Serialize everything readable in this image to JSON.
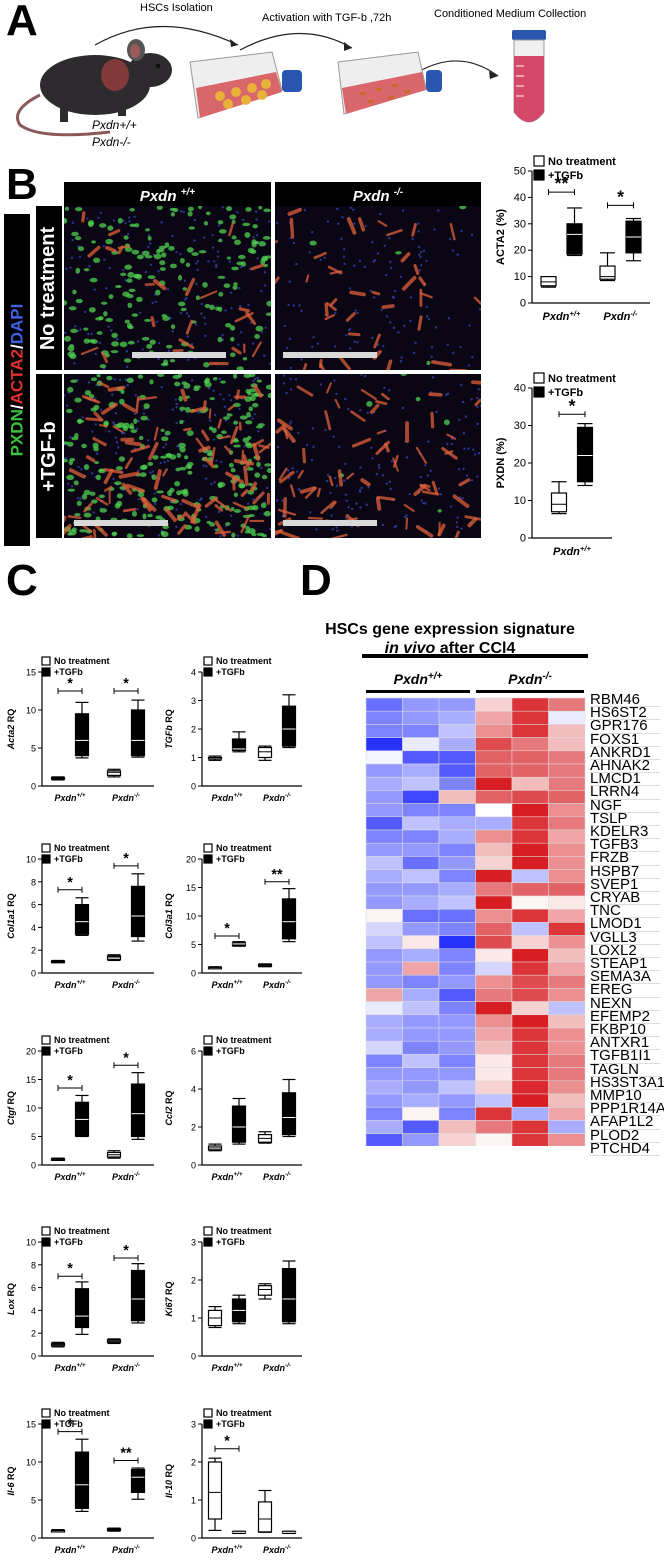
{
  "panels": {
    "a": "A",
    "b": "B",
    "c": "C",
    "d": "D"
  },
  "panel_a": {
    "steps": [
      "HSCs Isolation",
      "Activation with TGF-b ,72h",
      "Conditioned Medium Collection"
    ],
    "genotypes": [
      "Pxdn+/+",
      "Pxdn-/-"
    ]
  },
  "panel_b": {
    "col_headers": [
      {
        "base": "Pxdn",
        "sup": "+/+"
      },
      {
        "base": "Pxdn",
        "sup": "-/-"
      }
    ],
    "row_labels": [
      "No treatment",
      "+TGF-b"
    ],
    "stain": [
      {
        "text": "PXDN",
        "color": "#3fbf3f"
      },
      {
        "text": "/",
        "color": "#ffffff"
      },
      {
        "text": "ACTA2",
        "color": "#e03030"
      },
      {
        "text": "/",
        "color": "#ffffff"
      },
      {
        "text": "DAPI",
        "color": "#4060e0"
      }
    ]
  },
  "legend": {
    "no_treatment": "No treatment",
    "tgfb": "+TGFb"
  },
  "chart_data": [
    {
      "id": "acta2_pct",
      "type": "box",
      "ylabel": "ACTA2 (%)",
      "ylim": [
        0,
        50
      ],
      "yticks": [
        0,
        10,
        20,
        30,
        40,
        50
      ],
      "categories": [
        "Pxdn+/+",
        "Pxdn-/-"
      ],
      "boxes": [
        {
          "group": 0,
          "series": "No treatment",
          "min": 6,
          "q1": 6.5,
          "median": 8,
          "q3": 10,
          "max": 10
        },
        {
          "group": 0,
          "series": "+TGFb",
          "min": 18,
          "q1": 18.5,
          "median": 26,
          "q3": 30,
          "max": 36
        },
        {
          "group": 1,
          "series": "No treatment",
          "min": 8.5,
          "q1": 9,
          "median": 10,
          "q3": 14,
          "max": 19
        },
        {
          "group": 1,
          "series": "+TGFb",
          "min": 16,
          "q1": 19,
          "median": 25,
          "q3": 31,
          "max": 32
        }
      ],
      "sig": [
        {
          "group": 0,
          "text": "**",
          "y": 42
        },
        {
          "group": 1,
          "text": "*",
          "y": 37
        }
      ]
    },
    {
      "id": "pxdn_pct",
      "type": "box",
      "ylabel": "PXDN (%)",
      "ylim": [
        0,
        40
      ],
      "yticks": [
        0,
        10,
        20,
        30,
        40
      ],
      "categories": [
        "Pxdn+/+"
      ],
      "boxes": [
        {
          "group": 0,
          "series": "No treatment",
          "min": 6.5,
          "q1": 7,
          "median": 9,
          "q3": 12,
          "max": 15
        },
        {
          "group": 0,
          "series": "+TGFb",
          "min": 14,
          "q1": 15,
          "median": 22,
          "q3": 29.5,
          "max": 30.5
        }
      ],
      "sig": [
        {
          "group": 0,
          "text": "*",
          "y": 33
        }
      ]
    },
    {
      "id": "acta2",
      "type": "box",
      "ylabel": "Acta2 RQ",
      "ylim": [
        0,
        15
      ],
      "yticks": [
        0,
        5,
        10,
        15
      ],
      "categories": [
        "Pxdn+/+",
        "Pxdn-/-"
      ],
      "boxes": [
        {
          "group": 0,
          "series": "No treatment",
          "min": 0.8,
          "q1": 0.9,
          "median": 1,
          "q3": 1.1,
          "max": 1.2
        },
        {
          "group": 0,
          "series": "+TGFb",
          "min": 3.7,
          "q1": 4,
          "median": 6,
          "q3": 9.5,
          "max": 11
        },
        {
          "group": 1,
          "series": "No treatment",
          "min": 1.2,
          "q1": 1.4,
          "median": 1.8,
          "q3": 2,
          "max": 2.2
        },
        {
          "group": 1,
          "series": "+TGFb",
          "min": 3.8,
          "q1": 4,
          "median": 6,
          "q3": 10,
          "max": 11.3
        }
      ],
      "sig": [
        {
          "group": 0,
          "text": "*",
          "y": 12.5
        },
        {
          "group": 1,
          "text": "*",
          "y": 12.5
        }
      ]
    },
    {
      "id": "tgfb",
      "type": "box",
      "ylabel": "TGFb RQ",
      "ylim": [
        0,
        4
      ],
      "yticks": [
        0,
        1,
        2,
        3,
        4
      ],
      "categories": [
        "Pxdn+/+",
        "Pxdn-/-"
      ],
      "boxes": [
        {
          "group": 0,
          "series": "No treatment",
          "min": 0.9,
          "q1": 0.95,
          "median": 1,
          "q3": 1,
          "max": 1.05
        },
        {
          "group": 0,
          "series": "+TGFb",
          "min": 1.2,
          "q1": 1.25,
          "median": 1.3,
          "q3": 1.65,
          "max": 1.9
        },
        {
          "group": 1,
          "series": "No treatment",
          "min": 0.9,
          "q1": 1,
          "median": 1.2,
          "q3": 1.35,
          "max": 1.4
        },
        {
          "group": 1,
          "series": "+TGFb",
          "min": 1.35,
          "q1": 1.4,
          "median": 2,
          "q3": 2.8,
          "max": 3.2
        }
      ],
      "sig": []
    },
    {
      "id": "col1a1",
      "type": "box",
      "ylabel": "Col1a1 RQ",
      "ylim": [
        0,
        10
      ],
      "yticks": [
        0,
        2,
        4,
        6,
        8,
        10
      ],
      "categories": [
        "Pxdn+/+",
        "Pxdn-/-"
      ],
      "boxes": [
        {
          "group": 0,
          "series": "No treatment",
          "min": 0.9,
          "q1": 1,
          "median": 1,
          "q3": 1.05,
          "max": 1.1
        },
        {
          "group": 0,
          "series": "+TGFb",
          "min": 3.3,
          "q1": 3.4,
          "median": 4.5,
          "q3": 6,
          "max": 6.6
        },
        {
          "group": 1,
          "series": "No treatment",
          "min": 1.1,
          "q1": 1.2,
          "median": 1.4,
          "q3": 1.5,
          "max": 1.6
        },
        {
          "group": 1,
          "series": "+TGFb",
          "min": 2.8,
          "q1": 3.2,
          "median": 5,
          "q3": 7.6,
          "max": 8.7
        }
      ],
      "sig": [
        {
          "group": 0,
          "text": "*",
          "y": 7.3
        },
        {
          "group": 1,
          "text": "*",
          "y": 9.4
        }
      ]
    },
    {
      "id": "col3a1",
      "type": "box",
      "ylabel": "Col3a1 RQ",
      "ylim": [
        0,
        20
      ],
      "yticks": [
        0,
        5,
        10,
        15,
        20
      ],
      "categories": [
        "Pxdn+/+",
        "Pxdn-/-"
      ],
      "boxes": [
        {
          "group": 0,
          "series": "No treatment",
          "min": 0.8,
          "q1": 0.9,
          "median": 1,
          "q3": 1,
          "max": 1.1
        },
        {
          "group": 0,
          "series": "+TGFb",
          "min": 4.7,
          "q1": 4.8,
          "median": 5.1,
          "q3": 5.3,
          "max": 5.5
        },
        {
          "group": 1,
          "series": "No treatment",
          "min": 1.1,
          "q1": 1.2,
          "median": 1.4,
          "q3": 1.5,
          "max": 1.6
        },
        {
          "group": 1,
          "series": "+TGFb",
          "min": 5.5,
          "q1": 6,
          "median": 9,
          "q3": 13,
          "max": 14.8
        }
      ],
      "sig": [
        {
          "group": 0,
          "text": "*",
          "y": 6.5
        },
        {
          "group": 1,
          "text": "**",
          "y": 16
        }
      ]
    },
    {
      "id": "ctgf",
      "type": "box",
      "ylabel": "Ctgf RQ",
      "ylim": [
        0,
        20
      ],
      "yticks": [
        0,
        5,
        10,
        15,
        20
      ],
      "categories": [
        "Pxdn+/+",
        "Pxdn-/-"
      ],
      "boxes": [
        {
          "group": 0,
          "series": "No treatment",
          "min": 0.8,
          "q1": 0.9,
          "median": 1,
          "q3": 1.1,
          "max": 1.2
        },
        {
          "group": 0,
          "series": "+TGFb",
          "min": 5,
          "q1": 5.1,
          "median": 8,
          "q3": 11,
          "max": 12.2
        },
        {
          "group": 1,
          "series": "No treatment",
          "min": 1.2,
          "q1": 1.4,
          "median": 1.8,
          "q3": 2.2,
          "max": 2.5
        },
        {
          "group": 1,
          "series": "+TGFb",
          "min": 4.5,
          "q1": 5,
          "median": 9,
          "q3": 14.2,
          "max": 16.2
        }
      ],
      "sig": [
        {
          "group": 0,
          "text": "*",
          "y": 13.5
        },
        {
          "group": 1,
          "text": "*",
          "y": 17.5
        }
      ]
    },
    {
      "id": "ccl2",
      "type": "box",
      "ylabel": "Ccl2 RQ",
      "ylim": [
        0,
        6
      ],
      "yticks": [
        0,
        2,
        4,
        6
      ],
      "categories": [
        "Pxdn+/+",
        "Pxdn-/-"
      ],
      "boxes": [
        {
          "group": 0,
          "series": "No treatment",
          "min": 0.75,
          "q1": 0.8,
          "median": 0.9,
          "q3": 1,
          "max": 1.1
        },
        {
          "group": 0,
          "series": "+TGFb",
          "min": 1.1,
          "q1": 1.2,
          "median": 2,
          "q3": 3.1,
          "max": 3.5
        },
        {
          "group": 1,
          "series": "No treatment",
          "min": 1.15,
          "q1": 1.2,
          "median": 1.4,
          "q3": 1.6,
          "max": 1.75
        },
        {
          "group": 1,
          "series": "+TGFb",
          "min": 1.5,
          "q1": 1.6,
          "median": 2.5,
          "q3": 3.8,
          "max": 4.5
        }
      ],
      "sig": []
    },
    {
      "id": "lox",
      "type": "box",
      "ylabel": "Lox RQ",
      "ylim": [
        0,
        10
      ],
      "yticks": [
        0,
        2,
        4,
        6,
        8,
        10
      ],
      "categories": [
        "Pxdn+/+",
        "Pxdn-/-"
      ],
      "boxes": [
        {
          "group": 0,
          "series": "No treatment",
          "min": 0.8,
          "q1": 0.9,
          "median": 1,
          "q3": 1.1,
          "max": 1.2
        },
        {
          "group": 0,
          "series": "+TGFb",
          "min": 1.9,
          "q1": 2.5,
          "median": 3.5,
          "q3": 5.9,
          "max": 6.5
        },
        {
          "group": 1,
          "series": "No treatment",
          "min": 1.1,
          "q1": 1.2,
          "median": 1.3,
          "q3": 1.4,
          "max": 1.5
        },
        {
          "group": 1,
          "series": "+TGFb",
          "min": 2.9,
          "q1": 3.1,
          "median": 5,
          "q3": 7.5,
          "max": 8.1
        }
      ],
      "sig": [
        {
          "group": 0,
          "text": "*",
          "y": 7
        },
        {
          "group": 1,
          "text": "*",
          "y": 8.6
        }
      ]
    },
    {
      "id": "ki67",
      "type": "box",
      "ylabel": "Ki67 RQ",
      "ylim": [
        0,
        3
      ],
      "yticks": [
        0,
        1,
        2,
        3
      ],
      "categories": [
        "Pxdn+/+",
        "Pxdn-/-"
      ],
      "boxes": [
        {
          "group": 0,
          "series": "No treatment",
          "min": 0.75,
          "q1": 0.8,
          "median": 1,
          "q3": 1.2,
          "max": 1.3
        },
        {
          "group": 0,
          "series": "+TGFb",
          "min": 0.85,
          "q1": 0.9,
          "median": 1.2,
          "q3": 1.5,
          "max": 1.6
        },
        {
          "group": 1,
          "series": "No treatment",
          "min": 1.5,
          "q1": 1.6,
          "median": 1.75,
          "q3": 1.85,
          "max": 1.9
        },
        {
          "group": 1,
          "series": "+TGFb",
          "min": 0.85,
          "q1": 0.9,
          "median": 1.5,
          "q3": 2.3,
          "max": 2.5
        }
      ],
      "sig": []
    },
    {
      "id": "il6",
      "type": "box",
      "ylabel": "Il-6 RQ",
      "ylim": [
        0,
        15
      ],
      "yticks": [
        0,
        5,
        10,
        15
      ],
      "categories": [
        "Pxdn+/+",
        "Pxdn-/-"
      ],
      "boxes": [
        {
          "group": 0,
          "series": "No treatment",
          "min": 0.8,
          "q1": 0.9,
          "median": 1,
          "q3": 1,
          "max": 1.1
        },
        {
          "group": 0,
          "series": "+TGFb",
          "min": 3.5,
          "q1": 3.9,
          "median": 7,
          "q3": 11.3,
          "max": 13
        },
        {
          "group": 1,
          "series": "No treatment",
          "min": 0.9,
          "q1": 1,
          "median": 1.1,
          "q3": 1.2,
          "max": 1.3
        },
        {
          "group": 1,
          "series": "+TGFb",
          "min": 5.1,
          "q1": 6,
          "median": 8,
          "q3": 9,
          "max": 9.2
        }
      ],
      "sig": [
        {
          "group": 0,
          "text": "*",
          "y": 14
        },
        {
          "group": 1,
          "text": "**",
          "y": 10.2
        }
      ]
    },
    {
      "id": "il10",
      "type": "box",
      "ylabel": "Il-10 RQ",
      "ylim": [
        0,
        3
      ],
      "yticks": [
        0,
        1,
        2,
        3
      ],
      "categories": [
        "Pxdn+/+",
        "Pxdn-/-"
      ],
      "boxes": [
        {
          "group": 0,
          "series": "No treatment",
          "min": 0.2,
          "q1": 0.5,
          "median": 1.2,
          "q3": 2,
          "max": 2.1
        },
        {
          "group": 0,
          "series": "+TGFb",
          "min": 0.12,
          "q1": 0.13,
          "median": 0.15,
          "q3": 0.17,
          "max": 0.18
        },
        {
          "group": 1,
          "series": "No treatment",
          "min": 0.15,
          "q1": 0.16,
          "median": 0.5,
          "q3": 0.95,
          "max": 1.25
        },
        {
          "group": 1,
          "series": "+TGFb",
          "min": 0.12,
          "q1": 0.13,
          "median": 0.15,
          "q3": 0.17,
          "max": 0.18
        }
      ],
      "sig": [
        {
          "group": 0,
          "text": "*",
          "y": 2.35
        }
      ]
    },
    {
      "id": "heatmap",
      "type": "heatmap",
      "title_line1": "HSCs gene expression signature",
      "title_line2_italic": "in vivo",
      "title_line2_rest": " after CCl4",
      "groups": [
        "Pxdn+/+",
        "Pxdn-/-"
      ],
      "genes": [
        "RBM46",
        "HS6ST2",
        "GPR176",
        "FOXS1",
        "ANKRD1",
        "AHNAK2",
        "LMCD1",
        "LRRN4",
        "NGF",
        "TSLP",
        "KDELR3",
        "TGFB3",
        "FRZB",
        "HSPB7",
        "SVEP1",
        "CRYAB",
        "TNC",
        "LMOD1",
        "VGLL3",
        "LOXL2",
        "STEAP1",
        "SEMA3A",
        "EREG",
        "NEXN",
        "EFEMP2",
        "FKBP10",
        "ANTXR1",
        "TGFB1I1",
        "TAGLN",
        "HS3ST3A1",
        "MMP10",
        "PPP1R14A",
        "AFAP1L2",
        "PLOD2",
        "PTCHD4"
      ],
      "values": [
        [
          -0.7,
          -0.5,
          -0.5,
          0.2,
          0.9,
          0.6
        ],
        [
          -0.6,
          -0.5,
          -0.4,
          0.4,
          0.9,
          -0.1
        ],
        [
          -0.6,
          -0.6,
          -0.3,
          0.5,
          0.9,
          0.3
        ],
        [
          -1,
          -0.1,
          -0.4,
          0.8,
          0.6,
          0.3
        ],
        [
          -0.05,
          -0.8,
          -0.8,
          0.7,
          0.7,
          0.6
        ],
        [
          -0.5,
          -0.4,
          -0.8,
          0.7,
          0.7,
          0.6
        ],
        [
          -0.4,
          -0.3,
          -0.6,
          1,
          0.3,
          0.6
        ],
        [
          -0.5,
          -0.9,
          0.3,
          0.7,
          0.8,
          0.7
        ],
        [
          -0.5,
          -0.6,
          -0.6,
          0,
          1,
          0.5
        ],
        [
          -0.8,
          -0.3,
          -0.4,
          -0.4,
          0.9,
          0.6
        ],
        [
          -0.6,
          -0.6,
          -0.4,
          0.5,
          0.9,
          0.4
        ],
        [
          -0.5,
          -0.5,
          -0.6,
          0.3,
          1,
          0.5
        ],
        [
          -0.3,
          -0.7,
          -0.5,
          0.2,
          1,
          0.5
        ],
        [
          -0.4,
          -0.3,
          -0.6,
          1,
          -0.3,
          0.5
        ],
        [
          -0.5,
          -0.5,
          -0.4,
          0.6,
          0.7,
          0.7
        ],
        [
          -0.5,
          -0.4,
          -0.3,
          1,
          0.05,
          0.1
        ],
        [
          0.05,
          -0.7,
          -0.7,
          0.5,
          0.9,
          0.4
        ],
        [
          -0.2,
          -0.5,
          -0.6,
          0.7,
          -0.3,
          0.9
        ],
        [
          -0.3,
          0.1,
          -1,
          0.8,
          0.2,
          0.5
        ],
        [
          -0.5,
          -0.4,
          -0.6,
          0.1,
          1,
          0.3
        ],
        [
          -0.5,
          0.4,
          -0.6,
          -0.2,
          0.9,
          0.4
        ],
        [
          -0.5,
          -0.6,
          -0.5,
          0.5,
          0.8,
          0.6
        ],
        [
          0.4,
          -0.4,
          -0.8,
          0.6,
          0.8,
          0.5
        ],
        [
          -0.1,
          -0.3,
          -0.6,
          1,
          0.2,
          -0.3
        ],
        [
          -0.4,
          -0.5,
          -0.5,
          0.5,
          1,
          0.3
        ],
        [
          -0.4,
          -0.5,
          -0.5,
          0.4,
          0.9,
          0.5
        ],
        [
          -0.2,
          -0.6,
          -0.5,
          0.3,
          0.9,
          0.5
        ],
        [
          -0.6,
          -0.3,
          -0.6,
          0.1,
          0.9,
          0.6
        ],
        [
          -0.5,
          -0.5,
          -0.5,
          0.1,
          0.9,
          0.6
        ],
        [
          -0.4,
          -0.5,
          -0.3,
          0.2,
          0.95,
          0.5
        ],
        [
          -0.5,
          -0.4,
          -0.5,
          -0.3,
          1,
          0.3
        ],
        [
          -0.6,
          0.05,
          -0.6,
          0.9,
          -0.4,
          0.4
        ],
        [
          -0.4,
          -0.8,
          0.3,
          0.6,
          0.9,
          -0.4
        ],
        [
          -0.8,
          -0.5,
          0.2,
          0.05,
          0.9,
          0.5
        ],
        [
          -0.2,
          -0.2,
          -0.2,
          -0.2,
          -0.2,
          1
        ]
      ]
    }
  ]
}
